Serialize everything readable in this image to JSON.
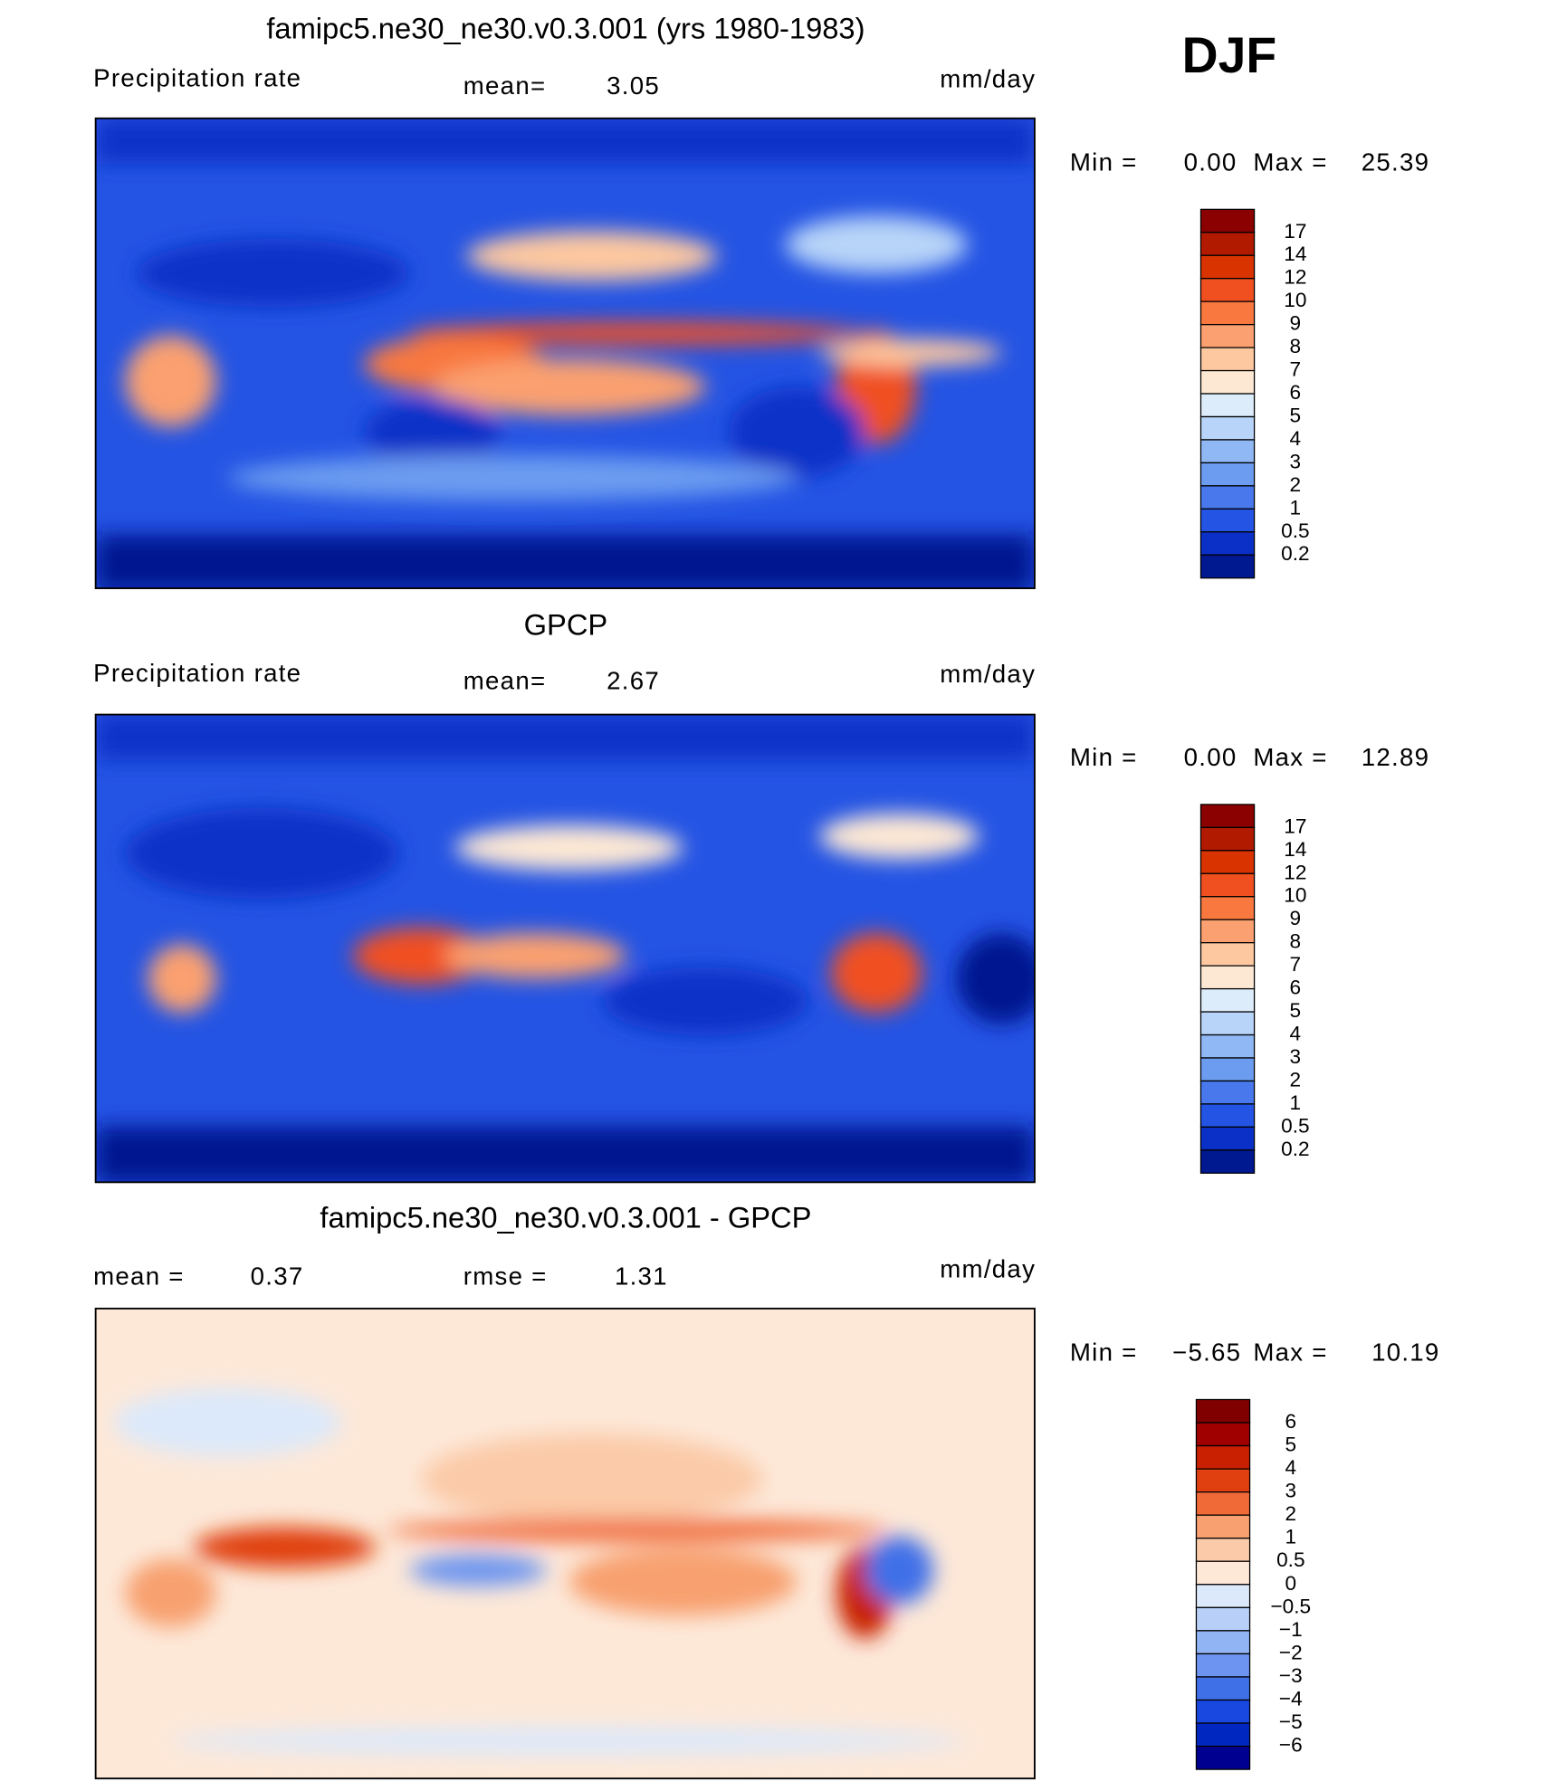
{
  "panels": [
    {
      "title": "famipc5.ne30_ne30.v0.3.001 (yrs 1980-1983)",
      "season": "DJF",
      "variable": "Precipitation rate",
      "mean_label": "mean=",
      "mean": "3.05",
      "units": "mm/day",
      "min_label": "Min =",
      "min": "0.00",
      "max_label": "Max =",
      "max": "25.39",
      "colorbar": {
        "labels": [
          "17",
          "14",
          "12",
          "10",
          "9",
          "8",
          "7",
          "6",
          "5",
          "4",
          "3",
          "2",
          "1",
          "0.5",
          "0.2"
        ],
        "colors": [
          "#8b0000",
          "#b21a00",
          "#d93300",
          "#f05020",
          "#f87840",
          "#fba070",
          "#fdc8a0",
          "#fde8d4",
          "#dcecfa",
          "#b8d4f8",
          "#90b8f4",
          "#6c9cf0",
          "#4878ec",
          "#2454e4",
          "#0a30c8",
          "#001890"
        ]
      }
    },
    {
      "title": "GPCP",
      "variable": "Precipitation rate",
      "mean_label": "mean=",
      "mean": "2.67",
      "units": "mm/day",
      "min_label": "Min =",
      "min": "0.00",
      "max_label": "Max =",
      "max": "12.89",
      "colorbar": {
        "labels": [
          "17",
          "14",
          "12",
          "10",
          "9",
          "8",
          "7",
          "6",
          "5",
          "4",
          "3",
          "2",
          "1",
          "0.5",
          "0.2"
        ],
        "colors": [
          "#8b0000",
          "#b21a00",
          "#d93300",
          "#f05020",
          "#f87840",
          "#fba070",
          "#fdc8a0",
          "#fde8d4",
          "#dcecfa",
          "#b8d4f8",
          "#90b8f4",
          "#6c9cf0",
          "#4878ec",
          "#2454e4",
          "#0a30c8",
          "#001890"
        ]
      }
    },
    {
      "title": "famipc5.ne30_ne30.v0.3.001 - GPCP",
      "mean_label": "mean =",
      "mean": "0.37",
      "rmse_label": "rmse =",
      "rmse": "1.31",
      "units": "mm/day",
      "min_label": "Min =",
      "min": "−5.65",
      "max_label": "Max =",
      "max": "10.19",
      "colorbar": {
        "labels": [
          "6",
          "5",
          "4",
          "3",
          "2",
          "1",
          "0.5",
          "0",
          "−0.5",
          "−1",
          "−2",
          "−3",
          "−4",
          "−5",
          "−6"
        ],
        "colors": [
          "#800000",
          "#a00000",
          "#c82000",
          "#e04010",
          "#f06a38",
          "#f8a070",
          "#fbcaa8",
          "#fde8d8",
          "#dce9fb",
          "#b8d0f8",
          "#90b4f4",
          "#6c94f0",
          "#4070e8",
          "#1848e0",
          "#0028c0",
          "#000090"
        ]
      }
    }
  ]
}
